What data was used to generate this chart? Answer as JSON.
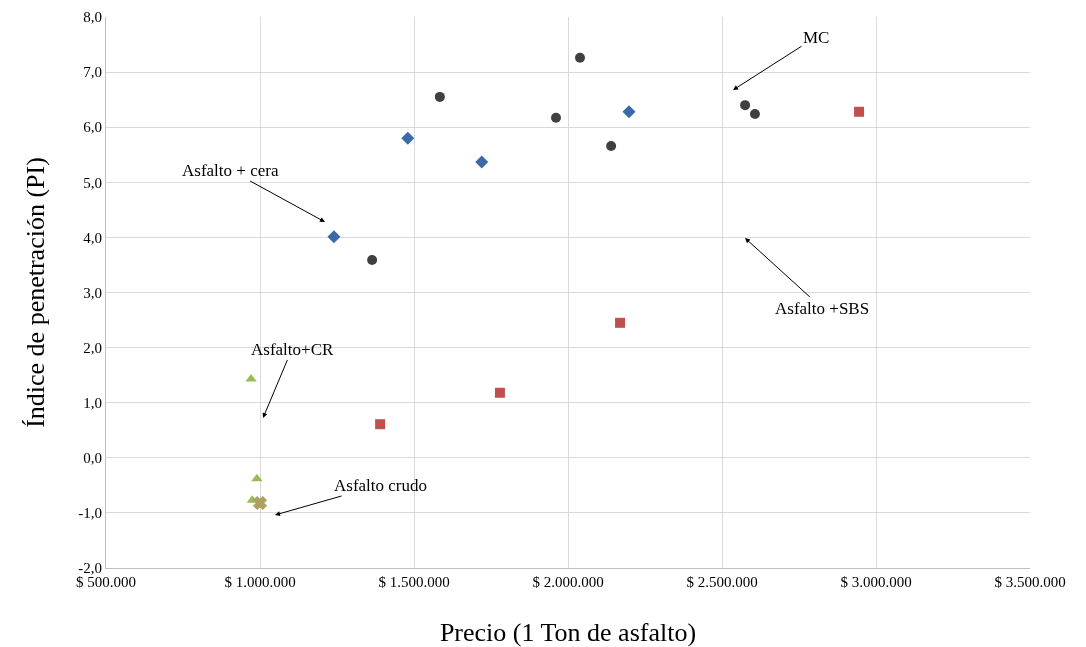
{
  "chart_data": {
    "type": "scatter",
    "xlabel": "Precio (1 Ton de asfalto)",
    "ylabel": "Índice de penetración (PI)",
    "xlim": [
      500000,
      3500000
    ],
    "ylim": [
      -2,
      8
    ],
    "xticks": [
      {
        "value": 500000,
        "label": "$ 500.000"
      },
      {
        "value": 1000000,
        "label": "$ 1.000.000"
      },
      {
        "value": 1500000,
        "label": "$ 1.500.000"
      },
      {
        "value": 2000000,
        "label": "$ 2.000.000"
      },
      {
        "value": 2500000,
        "label": "$ 2.500.000"
      },
      {
        "value": 3000000,
        "label": "$ 3.000.000"
      },
      {
        "value": 3500000,
        "label": "$ 3.500.000"
      }
    ],
    "yticks": [
      {
        "value": -2,
        "label": "-2,0"
      },
      {
        "value": -1,
        "label": "-1,0"
      },
      {
        "value": 0,
        "label": "0,0"
      },
      {
        "value": 1,
        "label": "1,0"
      },
      {
        "value": 2,
        "label": "2,0"
      },
      {
        "value": 3,
        "label": "3,0"
      },
      {
        "value": 4,
        "label": "4,0"
      },
      {
        "value": 5,
        "label": "5,0"
      },
      {
        "value": 6,
        "label": "6,0"
      },
      {
        "value": 7,
        "label": "7,0"
      },
      {
        "value": 8,
        "label": "8,0"
      }
    ],
    "grid": true,
    "series": [
      {
        "color": "#404040",
        "marker": "circle",
        "x": [
          1584000,
          2039000,
          1961000,
          2140000,
          2575000,
          2607000,
          1364000
        ],
        "values": [
          6.55,
          7.26,
          6.17,
          5.66,
          6.4,
          6.24,
          3.59
        ]
      },
      {
        "color": "#3a6aa8",
        "marker": "diamond",
        "x": [
          1480000,
          1720000,
          2198000,
          1240000
        ],
        "values": [
          5.8,
          5.37,
          6.28,
          4.01
        ]
      },
      {
        "color": "#c0504d",
        "marker": "square",
        "x": [
          1390000,
          1779000,
          2169000,
          2945000
        ],
        "values": [
          0.61,
          1.18,
          2.45,
          6.28
        ]
      },
      {
        "color": "#9bbb59",
        "marker": "triangle",
        "x": [
          971000,
          990000,
          975000
        ],
        "values": [
          1.43,
          -0.38,
          -0.77
        ]
      },
      {
        "color": "#b0a060",
        "marker": "cross",
        "x": [
          1000000
        ],
        "values": [
          -0.82
        ]
      }
    ],
    "annotations": [
      "MC",
      "Asfalto + cera",
      "Asfalto +SBS",
      "Asfalto+CR",
      "Asfalto crudo"
    ]
  }
}
